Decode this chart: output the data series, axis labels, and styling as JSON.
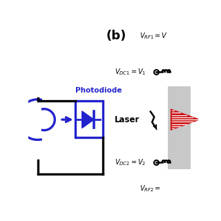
{
  "bg_color": "#ffffff",
  "blue_color": "#2222cc",
  "black_color": "#000000",
  "red_color": "#cc1111",
  "gray_color": "#c8c8c8",
  "title_b": "(b)",
  "label_photodiode": "Photodiode",
  "label_laser": "Laser",
  "label_vrf1": "$V_{RF1}=V$",
  "label_vdc1": "$V_{DC1}=V_1$",
  "label_vdc2": "$V_{DC2}=V_2$",
  "label_vrf2": "$V_{RF2}=$",
  "figsize": [
    3.2,
    3.2
  ],
  "dpi": 100
}
